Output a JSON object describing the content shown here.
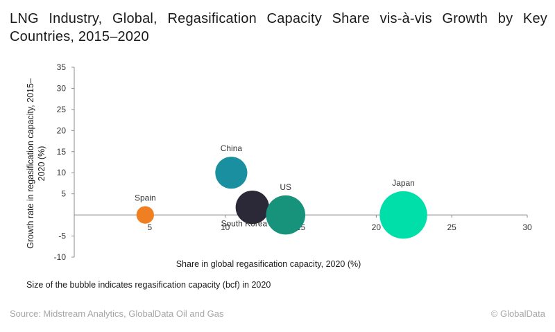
{
  "title": "LNG Industry, Global, Regasification Capacity Share vis-à-vis Growth by Key Countries, 2015–2020",
  "note": "Size of the bubble indicates regasification capacity (bcf) in 2020",
  "source": "Source: Midstream Analytics, GlobalData Oil and Gas",
  "credit": "© GlobalData",
  "chart_data": {
    "type": "scatter",
    "subtype": "bubble",
    "xlabel": "Share in global regasification capacity, 2020 (%)",
    "ylabel": "Growth rate in regasification capacity, 2015–2020 (%)",
    "xlim": [
      0,
      30
    ],
    "ylim": [
      -10,
      35
    ],
    "xticks": [
      5,
      10,
      15,
      20,
      25,
      30
    ],
    "yticks": [
      35,
      30,
      25,
      20,
      15,
      10,
      5,
      -5,
      -10
    ],
    "grid": false,
    "legend": "none",
    "points": [
      {
        "label": "Spain",
        "x": 4.7,
        "y": 0,
        "size": 3,
        "color": "#f07f22",
        "label_pos": "above"
      },
      {
        "label": "China",
        "x": 10.4,
        "y": 10,
        "size": 10,
        "color": "#1a8fa0",
        "label_pos": "above"
      },
      {
        "label": "South Korea",
        "x": 11.8,
        "y": 1.8,
        "size": 11,
        "color": "#2b2838",
        "label_pos": "below"
      },
      {
        "label": "US",
        "x": 14,
        "y": 0,
        "size": 15,
        "color": "#16937a",
        "label_pos": "above"
      },
      {
        "label": "Japan",
        "x": 21.8,
        "y": 0,
        "size": 22,
        "color": "#00deaa",
        "label_pos": "above"
      }
    ]
  }
}
